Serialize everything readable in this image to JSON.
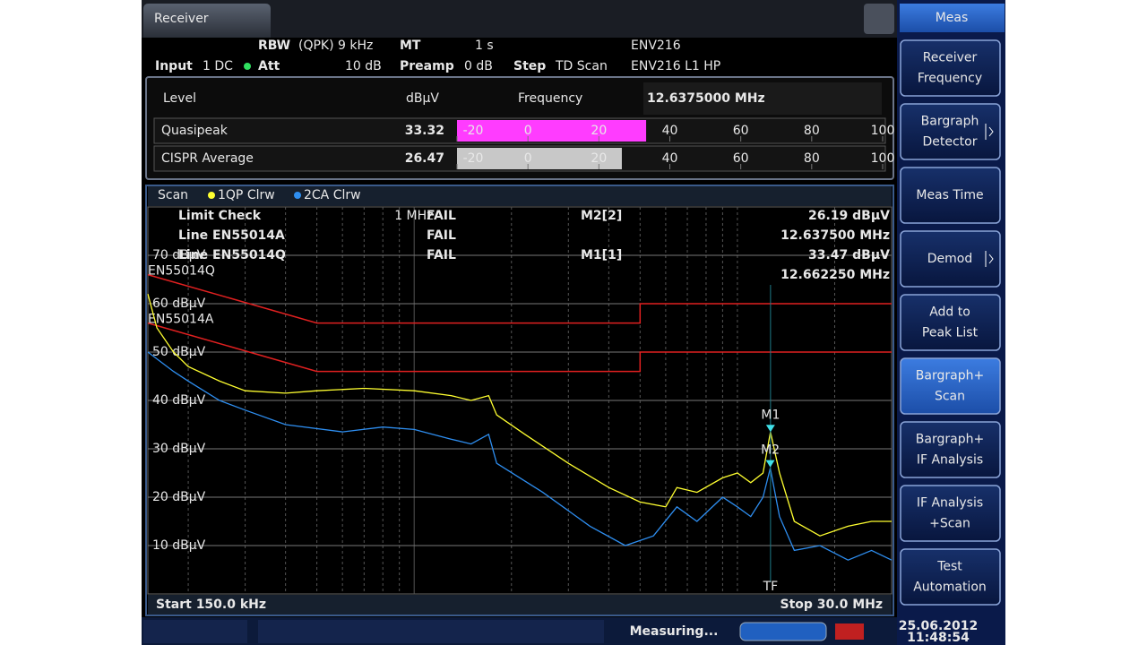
{
  "tab": "Receiver",
  "settings": {
    "rbw": {
      "label": "RBW",
      "value": "(QPK) 9 kHz"
    },
    "mt": {
      "label": "MT",
      "value": "1 s"
    },
    "lisn": "ENV216",
    "input": {
      "label": "Input",
      "value": "1 DC"
    },
    "att": {
      "label": "Att",
      "value": "10 dB"
    },
    "preamp": {
      "label": "Preamp",
      "value": "0 dB"
    },
    "step": {
      "label": "Step",
      "value": "TD Scan"
    },
    "lisn_mode": "ENV216 L1 HP"
  },
  "level_panel": {
    "title": "Level",
    "unit": "dBµV",
    "frequency_label": "Frequency",
    "frequency": "12.6375000 MHz",
    "xlim": [
      -20,
      100
    ],
    "xticks": [
      -20,
      0,
      20,
      40,
      60,
      80,
      100
    ],
    "detectors": [
      {
        "name": "Quasipeak",
        "value": 33.32,
        "color": "#ff3cff"
      },
      {
        "name": "CISPR Average",
        "value": 26.47,
        "color": "#c8c8c8"
      }
    ]
  },
  "scan_legend": "Scan",
  "plot": {
    "xlim": [
      0.15,
      30
    ],
    "xlog": true,
    "ylim": [
      0,
      80
    ],
    "yticks": [
      {
        "value": 70,
        "label": "70 dBµV"
      },
      {
        "value": 60,
        "label": "60 dBµV"
      },
      {
        "value": 50,
        "label": "50 dBµV"
      },
      {
        "value": 40,
        "label": "40 dBµV"
      },
      {
        "value": 30,
        "label": "30 dBµV"
      },
      {
        "value": 20,
        "label": "20 dBµV"
      },
      {
        "value": 10,
        "label": "10 dBµV"
      }
    ],
    "xgrid": [
      0.2,
      0.3,
      0.4,
      0.5,
      0.6,
      0.7,
      0.8,
      0.9,
      1,
      2,
      3,
      4,
      5,
      6,
      7,
      8,
      9,
      10,
      20
    ],
    "x_marker_label": "1 MHz",
    "start": "Start 150.0 kHz",
    "stop": "Stop 30.0 MHz",
    "limit_check": {
      "title": "Limit Check",
      "result": "FAIL",
      "lines": [
        {
          "name": "Line EN55014A",
          "result": "FAIL"
        },
        {
          "name": "Line EN55014Q",
          "result": "FAIL"
        }
      ]
    },
    "marker_readouts": [
      {
        "name": "M2[2]",
        "level": "26.19 dBµV",
        "frequency": "12.637500 MHz"
      },
      {
        "name": "M1[1]",
        "level": "33.47 dBµV",
        "frequency": "12.662250 MHz"
      }
    ],
    "markers": [
      {
        "label": "M1",
        "x": 12.66225,
        "value": 33.47
      },
      {
        "label": "M2",
        "x": 12.6375,
        "value": 26.19
      }
    ],
    "tf": "TF",
    "limits": [
      {
        "name": "EN55014Q",
        "color": "#e02020",
        "x": [
          0.15,
          0.5,
          5,
          5,
          30
        ],
        "values": [
          66,
          56,
          56,
          60,
          60
        ]
      },
      {
        "name": "EN55014A",
        "color": "#e02020",
        "x": [
          0.15,
          0.5,
          5,
          5,
          30
        ],
        "values": [
          56,
          46,
          46,
          50,
          50
        ]
      }
    ],
    "traces": [
      {
        "name": "1QP Clrw",
        "color": "#ffff30",
        "x": [
          0.15,
          0.16,
          0.18,
          0.2,
          0.25,
          0.3,
          0.4,
          0.5,
          0.7,
          1,
          1.3,
          1.5,
          1.7,
          1.8,
          2.2,
          3,
          4,
          5,
          6,
          6.5,
          7.5,
          9,
          10,
          11,
          12,
          12.66,
          13.5,
          15,
          18,
          22,
          26,
          30
        ],
        "values": [
          62,
          55,
          50,
          47,
          44,
          42,
          41.5,
          42,
          42.5,
          42,
          41,
          40,
          41,
          37,
          33,
          27,
          22,
          19,
          18,
          22,
          21,
          24,
          25,
          23,
          25,
          33.5,
          25,
          15,
          12,
          14,
          15,
          15
        ]
      },
      {
        "name": "2CA Clrw",
        "color": "#2e8ef0",
        "x": [
          0.15,
          0.18,
          0.2,
          0.25,
          0.3,
          0.4,
          0.6,
          0.8,
          1,
          1.3,
          1.5,
          1.7,
          1.8,
          2.5,
          3.5,
          4.5,
          5.5,
          6.5,
          7.5,
          9,
          10,
          11,
          12,
          12.64,
          13.5,
          15,
          18,
          22,
          26,
          30
        ],
        "values": [
          50,
          46,
          44,
          40,
          38,
          35,
          33.5,
          34.5,
          34,
          32,
          31,
          33,
          27,
          21,
          14,
          10,
          12,
          18,
          15,
          20,
          18,
          16,
          20,
          26,
          16,
          9,
          10,
          7,
          9,
          7
        ]
      }
    ]
  },
  "softkeys": {
    "title": "Meas",
    "keys": [
      {
        "lines": [
          "Receiver",
          "Frequency"
        ],
        "selected": false
      },
      {
        "lines": [
          "Bargraph",
          "Detector"
        ],
        "selected": false
      },
      {
        "lines": [
          "Meas Time"
        ],
        "selected": false
      },
      {
        "lines": [
          "Demod"
        ],
        "selected": false
      },
      {
        "lines": [
          "Add to",
          "Peak List"
        ],
        "selected": false
      },
      {
        "lines": [
          "Bargraph+",
          "Scan"
        ],
        "selected": true
      },
      {
        "lines": [
          "Bargraph+",
          "IF Analysis"
        ],
        "selected": false
      },
      {
        "lines": [
          "IF Analysis",
          "+Scan"
        ],
        "selected": false
      },
      {
        "lines": [
          "Test",
          "Automation"
        ],
        "selected": false
      }
    ]
  },
  "status": {
    "message": "Measuring...",
    "date": "25.06.2012",
    "time": "11:48:54"
  }
}
